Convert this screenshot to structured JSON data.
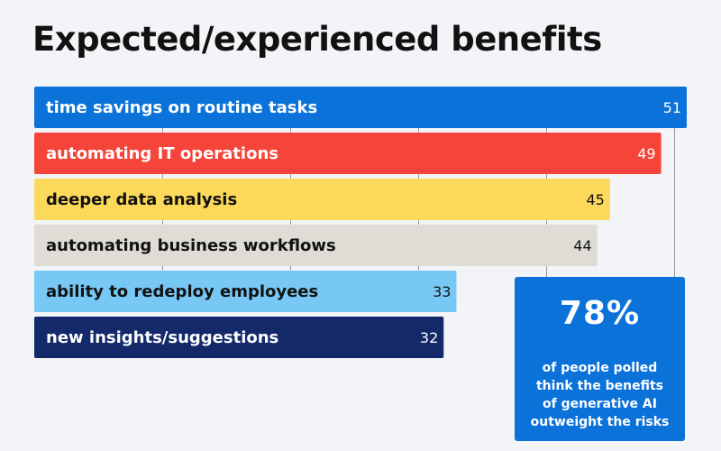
{
  "title": "Expected/experienced benefits",
  "colors": {
    "background": "#f3f4f7",
    "gridline": "#9a9aa0",
    "callout_bg": "#0b72d9"
  },
  "chart_data": {
    "type": "bar",
    "orientation": "horizontal",
    "categories": [
      "time savings on routine tasks",
      "automating IT operations",
      "deeper data analysis",
      "automating business workflows",
      "ability to redeploy employees",
      "new insights/suggestions"
    ],
    "values": [
      51,
      49,
      45,
      44,
      33,
      32
    ],
    "bar_colors": [
      "#0b72d9",
      "#f5443a",
      "#fcd95a",
      "#dedcd5",
      "#78c8f5",
      "#13296a"
    ],
    "label_colors": [
      "#ffffff",
      "#ffffff",
      "#111111",
      "#111111",
      "#111111",
      "#ffffff"
    ],
    "xlim": [
      0,
      51
    ],
    "grid": true
  },
  "callout": {
    "big": "78%",
    "lines": [
      "of people polled",
      "think the benefits",
      "of generative AI",
      "outweight the risks"
    ]
  }
}
